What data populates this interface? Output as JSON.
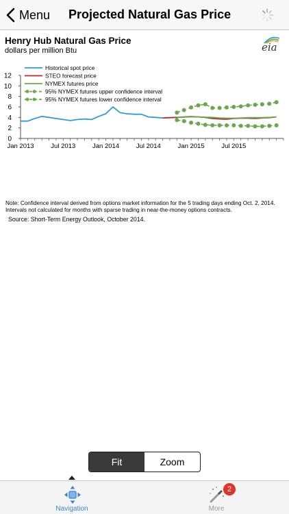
{
  "header": {
    "back_label": "Menu",
    "title": "Projected Natural Gas Price",
    "back_icon": "chevron-left-icon",
    "activity_icon": "spinner-icon"
  },
  "chart": {
    "logo_text": "eia",
    "note": "Note: Confidence interval derived from options market information for the 5 trading days ending Oct. 2, 2014. Intervals not calculated for months with sparse trading in near-the-money options contracts.",
    "source": "Source: Short-Term Energy Outlook, October 2014."
  },
  "chart_data": {
    "type": "line",
    "title": "Henry Hub Natural Gas Price",
    "subtitle": "dollars per million Btu",
    "xlabel": "",
    "ylabel": "",
    "ylim": [
      0,
      12
    ],
    "yticks": [
      0,
      2,
      4,
      6,
      8,
      10,
      12
    ],
    "xticks": [
      {
        "label": "Jan 2013",
        "month": 0
      },
      {
        "label": "Jul 2013",
        "month": 6
      },
      {
        "label": "Jan 2014",
        "month": 12
      },
      {
        "label": "Jul 2014",
        "month": 18
      },
      {
        "label": "Jan 2015",
        "month": 24
      },
      {
        "label": "Jul 2015",
        "month": 30
      }
    ],
    "grid": false,
    "legend_position": "top-left",
    "series": [
      {
        "name": "Historical spot price",
        "color": "#2e9bd6",
        "style": "solid",
        "points": [
          [
            0,
            3.3
          ],
          [
            1,
            3.3
          ],
          [
            2,
            3.8
          ],
          [
            3,
            4.2
          ],
          [
            4,
            4.0
          ],
          [
            5,
            3.8
          ],
          [
            6,
            3.6
          ],
          [
            7,
            3.4
          ],
          [
            8,
            3.6
          ],
          [
            9,
            3.7
          ],
          [
            10,
            3.6
          ],
          [
            11,
            4.2
          ],
          [
            12,
            4.7
          ],
          [
            13,
            6.0
          ],
          [
            14,
            4.9
          ],
          [
            15,
            4.7
          ],
          [
            16,
            4.6
          ],
          [
            17,
            4.6
          ],
          [
            18,
            4.1
          ],
          [
            19,
            4.0
          ],
          [
            20,
            3.9
          ]
        ]
      },
      {
        "name": "STEO forecast price",
        "color": "#b5292e",
        "style": "solid",
        "points": [
          [
            20,
            3.9
          ],
          [
            21,
            3.95
          ],
          [
            22,
            4.0
          ],
          [
            23,
            4.1
          ],
          [
            24,
            4.15
          ],
          [
            25,
            4.1
          ],
          [
            26,
            4.0
          ],
          [
            27,
            3.8
          ],
          [
            28,
            3.7
          ],
          [
            29,
            3.65
          ],
          [
            30,
            3.8
          ],
          [
            31,
            3.85
          ],
          [
            32,
            3.85
          ],
          [
            33,
            3.8
          ],
          [
            34,
            3.9
          ],
          [
            35,
            3.95
          ],
          [
            36,
            4.1
          ]
        ]
      },
      {
        "name": "NYMEX futures price",
        "color": "#6aa84f",
        "style": "solid",
        "points": [
          [
            22,
            4.0
          ],
          [
            23,
            4.05
          ],
          [
            24,
            4.1
          ],
          [
            25,
            4.1
          ],
          [
            26,
            4.05
          ],
          [
            27,
            4.0
          ],
          [
            28,
            3.9
          ],
          [
            29,
            3.85
          ],
          [
            30,
            3.85
          ],
          [
            31,
            3.9
          ],
          [
            32,
            3.95
          ],
          [
            33,
            3.95
          ],
          [
            34,
            3.95
          ],
          [
            35,
            4.0
          ],
          [
            36,
            4.1
          ]
        ]
      },
      {
        "name": "95% NYMEX futures upper confidence interval",
        "color": "#6aa84f",
        "style": "dashed-dots",
        "points": [
          [
            22,
            4.9
          ],
          [
            23,
            5.4
          ],
          [
            24,
            5.9
          ],
          [
            25,
            6.3
          ],
          [
            26,
            6.5
          ],
          [
            27,
            5.8
          ],
          [
            28,
            5.8
          ],
          [
            29,
            5.9
          ],
          [
            30,
            6.0
          ],
          [
            31,
            6.1
          ],
          [
            32,
            6.3
          ],
          [
            33,
            6.4
          ],
          [
            34,
            6.5
          ],
          [
            35,
            6.6
          ],
          [
            36,
            6.9
          ]
        ]
      },
      {
        "name": "95% NYMEX futures lower confidence interval",
        "color": "#6aa84f",
        "style": "dashed-dots",
        "points": [
          [
            22,
            3.5
          ],
          [
            23,
            3.3
          ],
          [
            24,
            3.0
          ],
          [
            25,
            2.8
          ],
          [
            26,
            2.6
          ],
          [
            27,
            2.5
          ],
          [
            28,
            2.5
          ],
          [
            29,
            2.5
          ],
          [
            30,
            2.5
          ],
          [
            31,
            2.4
          ],
          [
            32,
            2.4
          ],
          [
            33,
            2.3
          ],
          [
            34,
            2.3
          ],
          [
            35,
            2.4
          ],
          [
            36,
            2.5
          ]
        ]
      }
    ]
  },
  "view_toggle": {
    "options": [
      "Fit",
      "Zoom"
    ],
    "selected": "Fit"
  },
  "tabbar": {
    "tabs": [
      {
        "label": "Navigation",
        "icon": "navigation-icon",
        "active": true
      },
      {
        "label": "More",
        "icon": "magic-wand-icon",
        "active": false,
        "badge": "2"
      }
    ]
  }
}
